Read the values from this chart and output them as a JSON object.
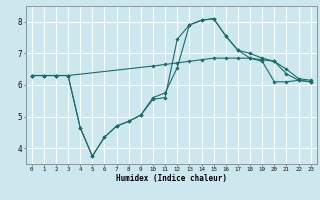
{
  "xlabel": "Humidex (Indice chaleur)",
  "bg_color": "#cce8ee",
  "grid_color": "#ffffff",
  "line_color": "#1a6b6b",
  "xlim": [
    -0.5,
    23.5
  ],
  "ylim": [
    3.5,
    8.5
  ],
  "xticks": [
    0,
    1,
    2,
    3,
    4,
    5,
    6,
    7,
    8,
    9,
    10,
    11,
    12,
    13,
    14,
    15,
    16,
    17,
    18,
    19,
    20,
    21,
    22,
    23
  ],
  "yticks": [
    4,
    5,
    6,
    7,
    8
  ],
  "line1_x": [
    0,
    1,
    2,
    3,
    10,
    11,
    12,
    13,
    14,
    15,
    16,
    17,
    18,
    19,
    20,
    21,
    22,
    23
  ],
  "line1_y": [
    6.3,
    6.3,
    6.3,
    6.3,
    6.6,
    6.65,
    6.7,
    6.75,
    6.8,
    6.85,
    6.85,
    6.85,
    6.85,
    6.8,
    6.75,
    6.5,
    6.2,
    6.15
  ],
  "line2_x": [
    0,
    1,
    2,
    3,
    4,
    5,
    6,
    7,
    8,
    9,
    10,
    11,
    12,
    13,
    14,
    15,
    16,
    17,
    18,
    19,
    20,
    21,
    22,
    23
  ],
  "line2_y": [
    6.3,
    6.3,
    6.3,
    6.3,
    4.65,
    3.75,
    4.35,
    4.7,
    4.85,
    5.05,
    5.55,
    5.6,
    7.45,
    7.9,
    8.05,
    8.1,
    7.55,
    7.1,
    7.0,
    6.85,
    6.75,
    6.35,
    6.15,
    6.1
  ],
  "line3_x": [
    0,
    1,
    2,
    3,
    4,
    5,
    6,
    7,
    8,
    9,
    10,
    11,
    12,
    13,
    14,
    15,
    16,
    17,
    18,
    19,
    20,
    21,
    22,
    23
  ],
  "line3_y": [
    6.3,
    6.3,
    6.3,
    6.3,
    4.65,
    3.75,
    4.35,
    4.7,
    4.85,
    5.05,
    5.6,
    5.75,
    6.55,
    7.9,
    8.05,
    8.1,
    7.55,
    7.1,
    6.85,
    6.75,
    6.1,
    6.1,
    6.15,
    6.1
  ]
}
